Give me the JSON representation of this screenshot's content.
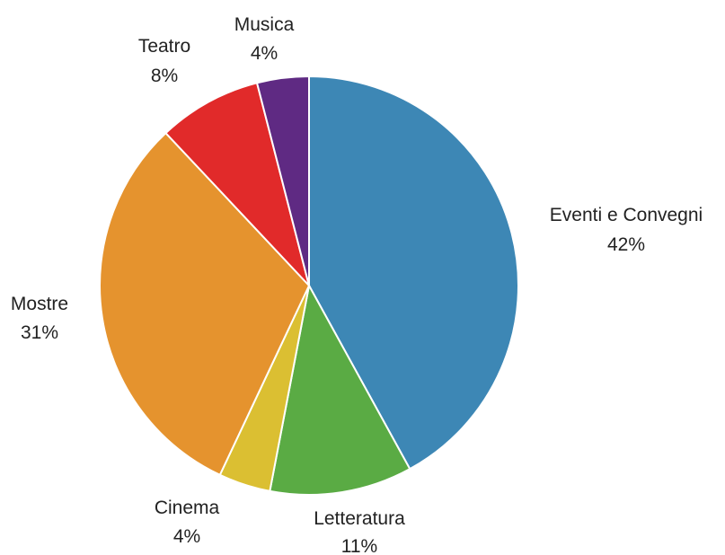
{
  "chart_data": {
    "type": "pie",
    "legend": "none (labels beside slices)",
    "slices": [
      {
        "label": "Eventi e Convegni",
        "value": 42,
        "pct_label": "42%",
        "color": "#3d87b5"
      },
      {
        "label": "Letteratura",
        "value": 11,
        "pct_label": "11%",
        "color": "#5aab44"
      },
      {
        "label": "Cinema",
        "value": 4,
        "pct_label": "4%",
        "color": "#dbbf32"
      },
      {
        "label": "Mostre",
        "value": 31,
        "pct_label": "31%",
        "color": "#e5932e"
      },
      {
        "label": "Teatro",
        "value": 8,
        "pct_label": "8%",
        "color": "#e12a2a"
      },
      {
        "label": "Musica",
        "value": 4,
        "pct_label": "4%",
        "color": "#5f2a83"
      }
    ]
  }
}
